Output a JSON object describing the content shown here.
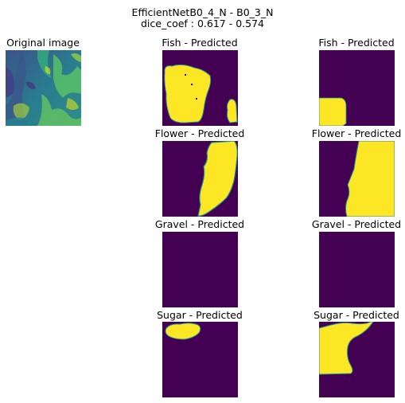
{
  "figure": {
    "title": "EfficientNetB0_4_N - B0_3_N",
    "subtitle": "dice_coef : 0.617 - 0.574"
  },
  "original": {
    "label": "Original image"
  },
  "rows": [
    {
      "left_label": "Fish - Predicted",
      "right_label": "Fish - Predicted"
    },
    {
      "left_label": "Flower - Predicted",
      "right_label": "Flower - Predicted"
    },
    {
      "left_label": "Gravel - Predicted",
      "right_label": "Gravel - Predicted"
    },
    {
      "left_label": "Sugar - Predicted",
      "right_label": "Sugar - Predicted"
    }
  ],
  "colors": {
    "mask_background": "#440154",
    "mask_foreground": "#fde725",
    "mask_edge": "#21918c"
  }
}
